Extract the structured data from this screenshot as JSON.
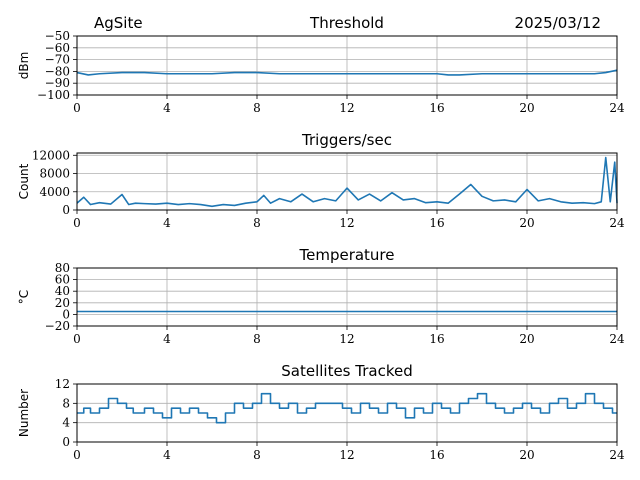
{
  "header": {
    "site": "AgSite",
    "date": "2025/03/12"
  },
  "style": {
    "line_color": "#1f77b4",
    "grid_color": "#b0b0b0"
  },
  "chart_data": [
    {
      "type": "line",
      "title": "Threshold",
      "ylabel": "dBm",
      "xlim": [
        0,
        24
      ],
      "ylim": [
        -100,
        -50
      ],
      "x_ticks": [
        0,
        4,
        8,
        12,
        16,
        20,
        24
      ],
      "x_tick_labels": [
        "0",
        "4",
        "8",
        "12",
        "16",
        "20",
        "24"
      ],
      "y_ticks": [
        -100,
        -90,
        -80,
        -70,
        -60,
        -50
      ],
      "y_tick_labels": [
        "−100",
        "−90",
        "−80",
        "−70",
        "−60",
        "−50"
      ],
      "grid": true,
      "series": [
        {
          "x": [
            0,
            0.5,
            1,
            2,
            3,
            4,
            5,
            6,
            7,
            8,
            9,
            10,
            11,
            12,
            13,
            14,
            15,
            16,
            16.5,
            17,
            18,
            19,
            20,
            21,
            22,
            23,
            23.5,
            24
          ],
          "y": [
            -81,
            -83,
            -82,
            -81,
            -81,
            -82,
            -82,
            -82,
            -81,
            -81,
            -82,
            -82,
            -82,
            -82,
            -82,
            -82,
            -82,
            -82,
            -83,
            -83,
            -82,
            -82,
            -82,
            -82,
            -82,
            -82,
            -81,
            -79
          ]
        }
      ]
    },
    {
      "type": "line",
      "title": "Triggers/sec",
      "ylabel": "Count",
      "xlim": [
        0,
        24
      ],
      "ylim": [
        0,
        12500
      ],
      "x_ticks": [
        0,
        4,
        8,
        12,
        16,
        20,
        24
      ],
      "x_tick_labels": [
        "0",
        "4",
        "8",
        "12",
        "16",
        "20",
        "24"
      ],
      "y_ticks": [
        0,
        4000,
        8000,
        12000
      ],
      "y_tick_labels": [
        "0",
        "4000",
        "8000",
        "12000"
      ],
      "grid": true,
      "series": [
        {
          "x": [
            0,
            0.3,
            0.6,
            1,
            1.5,
            2,
            2.3,
            2.6,
            3,
            3.5,
            4,
            4.5,
            5,
            5.5,
            6,
            6.5,
            7,
            7.5,
            8,
            8.3,
            8.6,
            9,
            9.5,
            10,
            10.5,
            11,
            11.5,
            12,
            12.5,
            13,
            13.5,
            14,
            14.5,
            15,
            15.5,
            16,
            16.5,
            17,
            17.5,
            18,
            18.5,
            19,
            19.5,
            20,
            20.5,
            21,
            21.5,
            22,
            22.5,
            23,
            23.3,
            23.5,
            23.7,
            23.9,
            24
          ],
          "y": [
            1500,
            2800,
            1200,
            1600,
            1300,
            3400,
            1200,
            1500,
            1400,
            1300,
            1500,
            1200,
            1400,
            1200,
            800,
            1200,
            1000,
            1500,
            1800,
            3200,
            1500,
            2500,
            1800,
            3500,
            1800,
            2500,
            2000,
            4800,
            2200,
            3500,
            2000,
            3800,
            2200,
            2500,
            1600,
            1800,
            1500,
            3500,
            5600,
            3000,
            2000,
            2200,
            1800,
            4500,
            2000,
            2500,
            1800,
            1500,
            1600,
            1400,
            1800,
            11500,
            1800,
            10500,
            1500
          ]
        }
      ]
    },
    {
      "type": "line",
      "title": "Temperature",
      "ylabel": "°C",
      "xlim": [
        0,
        24
      ],
      "ylim": [
        -20,
        80
      ],
      "x_ticks": [
        0,
        4,
        8,
        12,
        16,
        20,
        24
      ],
      "x_tick_labels": [
        "0",
        "4",
        "8",
        "12",
        "16",
        "20",
        "24"
      ],
      "y_ticks": [
        -20,
        0,
        20,
        40,
        60,
        80
      ],
      "y_tick_labels": [
        "−20",
        "0",
        "20",
        "40",
        "60",
        "80"
      ],
      "grid": true,
      "series": [
        {
          "x": [
            0,
            24
          ],
          "y": [
            5,
            5
          ]
        }
      ]
    },
    {
      "type": "line",
      "title": "Satellites Tracked",
      "ylabel": "Number",
      "xlim": [
        0,
        24
      ],
      "ylim": [
        0,
        12
      ],
      "x_ticks": [
        0,
        4,
        8,
        12,
        16,
        20,
        24
      ],
      "x_tick_labels": [
        "0",
        "4",
        "8",
        "12",
        "16",
        "20",
        "24"
      ],
      "y_ticks": [
        0,
        4,
        8,
        12
      ],
      "y_tick_labels": [
        "0",
        "4",
        "8",
        "12"
      ],
      "grid": true,
      "series": [
        {
          "step": true,
          "x": [
            0,
            0.3,
            0.6,
            1,
            1.4,
            1.8,
            2.2,
            2.5,
            3,
            3.4,
            3.8,
            4.2,
            4.6,
            5,
            5.4,
            5.8,
            6.2,
            6.6,
            7,
            7.4,
            7.8,
            8.2,
            8.6,
            9,
            9.4,
            9.8,
            10.2,
            10.6,
            11,
            11.4,
            11.8,
            12.2,
            12.6,
            13,
            13.4,
            13.8,
            14.2,
            14.6,
            15,
            15.4,
            15.8,
            16.2,
            16.6,
            17,
            17.4,
            17.8,
            18.2,
            18.6,
            19,
            19.4,
            19.8,
            20.2,
            20.6,
            21,
            21.4,
            21.8,
            22.2,
            22.6,
            23,
            23.4,
            23.8,
            24
          ],
          "y": [
            6,
            7,
            6,
            7,
            9,
            8,
            7,
            6,
            7,
            6,
            5,
            7,
            6,
            7,
            6,
            5,
            4,
            6,
            8,
            7,
            8,
            10,
            8,
            7,
            8,
            6,
            7,
            8,
            8,
            8,
            7,
            6,
            8,
            7,
            6,
            8,
            7,
            5,
            7,
            6,
            8,
            7,
            6,
            8,
            9,
            10,
            8,
            7,
            6,
            7,
            8,
            7,
            6,
            8,
            9,
            7,
            8,
            10,
            8,
            7,
            6,
            6
          ]
        }
      ]
    }
  ]
}
